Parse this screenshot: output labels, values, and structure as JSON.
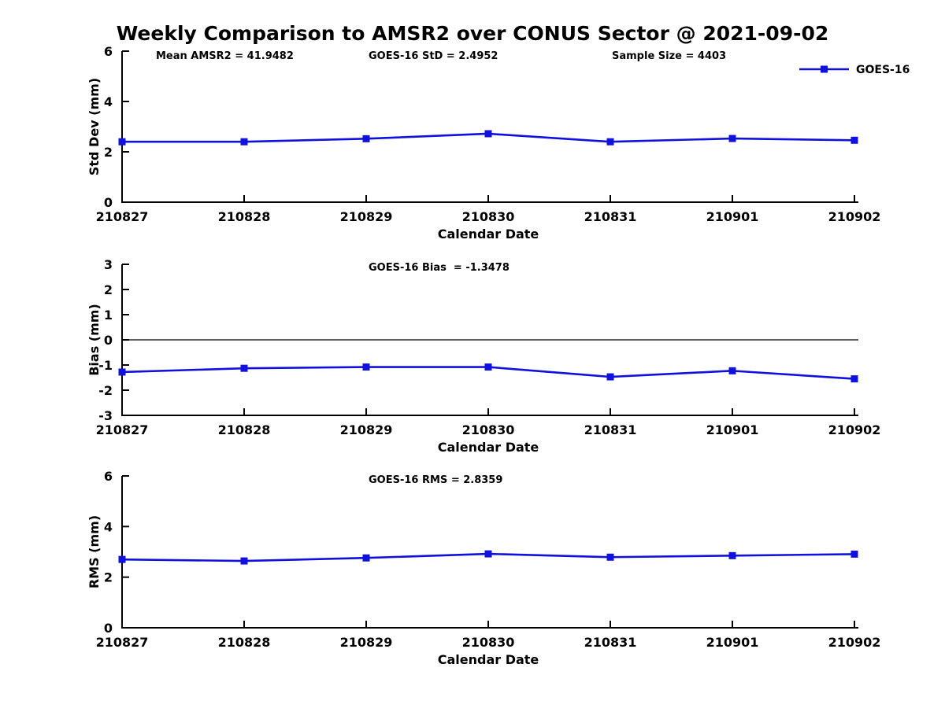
{
  "page_title": "Weekly Comparison to AMSR2 over CONUS Sector @ 2021-09-02",
  "colors": {
    "series_line": "#1111dd",
    "axis": "#000000",
    "zero_line": "#000000",
    "text": "#000000",
    "background": "#ffffff"
  },
  "legend": {
    "label": "GOES-16",
    "position": "top-right-of-first-subplot"
  },
  "chart_data": [
    {
      "type": "line",
      "name": "std-dev-subplot",
      "title": "",
      "annotations": [
        "Mean AMSR2 = 41.9482",
        "GOES-16 StD = 2.4952",
        "Sample Size = 4403"
      ],
      "categories": [
        "210827",
        "210828",
        "210829",
        "210830",
        "210831",
        "210901",
        "210902"
      ],
      "series": [
        {
          "name": "GOES-16",
          "values": [
            2.4,
            2.4,
            2.52,
            2.72,
            2.4,
            2.53,
            2.46
          ]
        }
      ],
      "xlabel": "Calendar Date",
      "ylabel": "Std Dev (mm)",
      "ylim": [
        0,
        6
      ],
      "yticks": [
        0,
        2,
        4,
        6
      ],
      "zero_line": false,
      "grid": false,
      "legend_visible": true
    },
    {
      "type": "line",
      "name": "bias-subplot",
      "title": "",
      "annotations": [
        "GOES-16 Bias  = -1.3478"
      ],
      "categories": [
        "210827",
        "210828",
        "210829",
        "210830",
        "210831",
        "210901",
        "210902"
      ],
      "series": [
        {
          "name": "GOES-16",
          "values": [
            -1.28,
            -1.13,
            -1.08,
            -1.08,
            -1.47,
            -1.23,
            -1.55
          ]
        }
      ],
      "xlabel": "Calendar Date",
      "ylabel": "Bias (mm)",
      "ylim": [
        -3,
        3
      ],
      "yticks": [
        -3,
        -2,
        -1,
        0,
        1,
        2,
        3
      ],
      "zero_line": true,
      "grid": false,
      "legend_visible": false
    },
    {
      "type": "line",
      "name": "rms-subplot",
      "title": "",
      "annotations": [
        "GOES-16 RMS = 2.8359"
      ],
      "categories": [
        "210827",
        "210828",
        "210829",
        "210830",
        "210831",
        "210901",
        "210902"
      ],
      "series": [
        {
          "name": "GOES-16",
          "values": [
            2.7,
            2.64,
            2.76,
            2.92,
            2.79,
            2.85,
            2.91
          ]
        }
      ],
      "xlabel": "Calendar Date",
      "ylabel": "RMS (mm)",
      "ylim": [
        0,
        6
      ],
      "yticks": [
        0,
        2,
        4,
        6
      ],
      "zero_line": false,
      "grid": false,
      "legend_visible": false
    }
  ]
}
